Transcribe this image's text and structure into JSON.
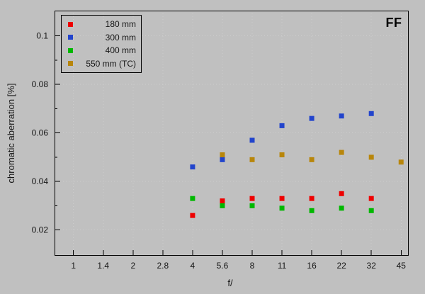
{
  "chart_data": {
    "type": "scatter",
    "title": "",
    "annotation": "FF",
    "xlabel": "f/",
    "ylabel": "chromatic aberration [%]",
    "x_scale": "logarithmic (full f-stops, evenly spaced)",
    "x_ticks": [
      "1",
      "1.4",
      "2",
      "2.8",
      "4",
      "5.6",
      "8",
      "11",
      "16",
      "22",
      "32",
      "45"
    ],
    "y_major_ticks": [
      {
        "value": 0.02,
        "label": "0.02"
      },
      {
        "value": 0.04,
        "label": "0.04"
      },
      {
        "value": 0.06,
        "label": "0.06"
      },
      {
        "value": 0.08,
        "label": "0.08"
      },
      {
        "value": 0.1,
        "label": "0.1"
      }
    ],
    "y_minor_ticks": [
      0.03,
      0.05,
      0.07,
      0.09
    ],
    "ylim": [
      0.0097,
      0.1104
    ],
    "grid": "faint dotted gridlines at major x and y ticks",
    "legend_position": "top-left",
    "marker": "7px filled square",
    "colors": {
      "background": "#c0c0c0",
      "axis": "#000000",
      "grid": "#cdcdcd",
      "text": "#161616"
    },
    "series": [
      {
        "name": "180 mm",
        "color": "#ee0000",
        "points": [
          {
            "f": "4",
            "y": 0.026
          },
          {
            "f": "5.6",
            "y": 0.032
          },
          {
            "f": "8",
            "y": 0.033
          },
          {
            "f": "11",
            "y": 0.033
          },
          {
            "f": "16",
            "y": 0.033
          },
          {
            "f": "22",
            "y": 0.035
          },
          {
            "f": "32",
            "y": 0.033
          }
        ]
      },
      {
        "name": "300 mm",
        "color": "#2244cc",
        "points": [
          {
            "f": "4",
            "y": 0.046
          },
          {
            "f": "5.6",
            "y": 0.049
          },
          {
            "f": "8",
            "y": 0.057
          },
          {
            "f": "11",
            "y": 0.063
          },
          {
            "f": "16",
            "y": 0.066
          },
          {
            "f": "22",
            "y": 0.067
          },
          {
            "f": "32",
            "y": 0.068
          }
        ]
      },
      {
        "name": "400 mm",
        "color": "#00b800",
        "points": [
          {
            "f": "4",
            "y": 0.033
          },
          {
            "f": "5.6",
            "y": 0.03
          },
          {
            "f": "8",
            "y": 0.03
          },
          {
            "f": "11",
            "y": 0.029
          },
          {
            "f": "16",
            "y": 0.028
          },
          {
            "f": "22",
            "y": 0.029
          },
          {
            "f": "32",
            "y": 0.028
          }
        ]
      },
      {
        "name": "550 mm (TC)",
        "color": "#b8860b",
        "points": [
          {
            "f": "5.6",
            "y": 0.051
          },
          {
            "f": "8",
            "y": 0.049
          },
          {
            "f": "11",
            "y": 0.051
          },
          {
            "f": "16",
            "y": 0.049
          },
          {
            "f": "22",
            "y": 0.052
          },
          {
            "f": "32",
            "y": 0.05
          },
          {
            "f": "45",
            "y": 0.048
          }
        ]
      }
    ]
  }
}
